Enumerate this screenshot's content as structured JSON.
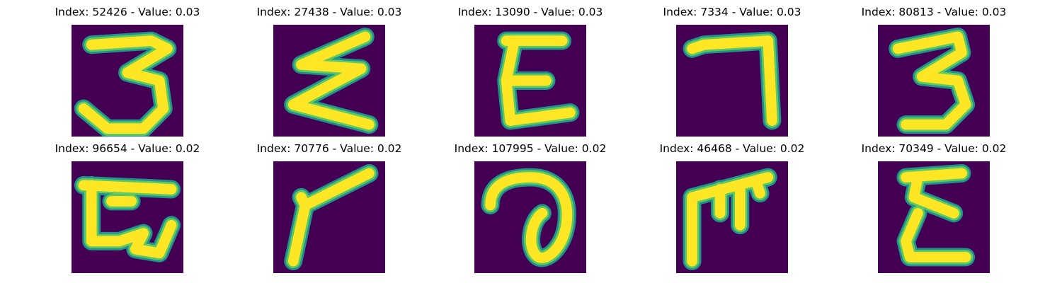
{
  "colors": {
    "background": "#440154",
    "stroke_outer": "#21918c",
    "stroke_mid": "#5ec962",
    "stroke_core": "#fde725"
  },
  "panels": [
    {
      "title": "Index: 52426 - Value: 0.03",
      "glyph": "three"
    },
    {
      "title": "Index: 27438 - Value: 0.03",
      "glyph": "sigma"
    },
    {
      "title": "Index: 13090 - Value: 0.03",
      "glyph": "E"
    },
    {
      "title": "Index: 7334 - Value: 0.03",
      "glyph": "seven"
    },
    {
      "title": "Index: 80813 - Value: 0.03",
      "glyph": "three-b"
    },
    {
      "title": "Index: 96654 - Value: 0.02",
      "glyph": "curly-E"
    },
    {
      "title": "Index: 70776 - Value: 0.02",
      "glyph": "slant-F"
    },
    {
      "title": "Index: 107995 - Value: 0.02",
      "glyph": "loop"
    },
    {
      "title": "Index: 46468 - Value: 0.02",
      "glyph": "comb-F"
    },
    {
      "title": "Index: 70349 - Value: 0.02",
      "glyph": "epsilon"
    }
  ]
}
